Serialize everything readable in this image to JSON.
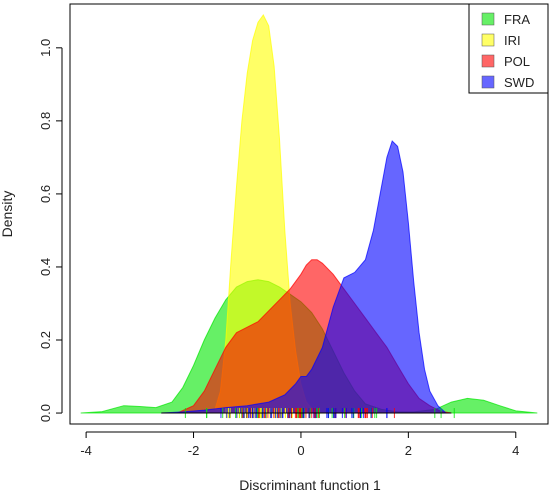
{
  "chart_data": {
    "type": "area",
    "title": "",
    "xlabel": "Discriminant function 1",
    "ylabel": "Density",
    "xlim": [
      -4.3,
      4.6
    ],
    "ylim": [
      -0.03,
      1.12
    ],
    "x_ticks": [
      "-4",
      "-2",
      "0",
      "2",
      "4"
    ],
    "y_ticks": [
      "0.0",
      "0.2",
      "0.4",
      "0.6",
      "0.8",
      "1.0"
    ],
    "legend_position": "top-right",
    "grid": false,
    "series": [
      {
        "name": "FRA",
        "color": "#00e600",
        "points": [
          [
            -4.1,
            0.0
          ],
          [
            -3.7,
            0.004
          ],
          [
            -3.3,
            0.02
          ],
          [
            -3.0,
            0.018
          ],
          [
            -2.7,
            0.015
          ],
          [
            -2.4,
            0.03
          ],
          [
            -2.2,
            0.07
          ],
          [
            -2.0,
            0.13
          ],
          [
            -1.8,
            0.2
          ],
          [
            -1.6,
            0.26
          ],
          [
            -1.4,
            0.31
          ],
          [
            -1.2,
            0.345
          ],
          [
            -1.0,
            0.36
          ],
          [
            -0.8,
            0.365
          ],
          [
            -0.6,
            0.36
          ],
          [
            -0.4,
            0.345
          ],
          [
            -0.2,
            0.325
          ],
          [
            0.0,
            0.305
          ],
          [
            0.2,
            0.275
          ],
          [
            0.4,
            0.23
          ],
          [
            0.6,
            0.17
          ],
          [
            0.8,
            0.11
          ],
          [
            1.0,
            0.06
          ],
          [
            1.2,
            0.025
          ],
          [
            1.5,
            0.01
          ],
          [
            1.8,
            0.003
          ],
          [
            2.1,
            0.003
          ],
          [
            2.5,
            0.01
          ],
          [
            2.8,
            0.03
          ],
          [
            3.1,
            0.04
          ],
          [
            3.4,
            0.035
          ],
          [
            3.7,
            0.02
          ],
          [
            4.0,
            0.006
          ],
          [
            4.4,
            0.0
          ]
        ]
      },
      {
        "name": "IRI",
        "color": "#ffff00",
        "points": [
          [
            -1.8,
            0.0
          ],
          [
            -1.6,
            0.01
          ],
          [
            -1.5,
            0.06
          ],
          [
            -1.4,
            0.2
          ],
          [
            -1.3,
            0.42
          ],
          [
            -1.2,
            0.62
          ],
          [
            -1.1,
            0.8
          ],
          [
            -1.0,
            0.93
          ],
          [
            -0.9,
            1.02
          ],
          [
            -0.8,
            1.07
          ],
          [
            -0.7,
            1.09
          ],
          [
            -0.6,
            1.06
          ],
          [
            -0.5,
            0.95
          ],
          [
            -0.4,
            0.75
          ],
          [
            -0.3,
            0.5
          ],
          [
            -0.2,
            0.3
          ],
          [
            -0.1,
            0.17
          ],
          [
            0.0,
            0.08
          ],
          [
            0.1,
            0.03
          ],
          [
            0.25,
            0.005
          ],
          [
            0.4,
            0.0
          ]
        ]
      },
      {
        "name": "POL",
        "color": "#ff0000",
        "points": [
          [
            -2.3,
            0.0
          ],
          [
            -2.0,
            0.02
          ],
          [
            -1.8,
            0.06
          ],
          [
            -1.6,
            0.12
          ],
          [
            -1.4,
            0.18
          ],
          [
            -1.2,
            0.22
          ],
          [
            -1.0,
            0.235
          ],
          [
            -0.8,
            0.25
          ],
          [
            -0.6,
            0.28
          ],
          [
            -0.4,
            0.31
          ],
          [
            -0.2,
            0.34
          ],
          [
            0.0,
            0.38
          ],
          [
            0.1,
            0.405
          ],
          [
            0.2,
            0.42
          ],
          [
            0.3,
            0.42
          ],
          [
            0.4,
            0.41
          ],
          [
            0.6,
            0.38
          ],
          [
            0.8,
            0.34
          ],
          [
            1.0,
            0.3
          ],
          [
            1.2,
            0.26
          ],
          [
            1.4,
            0.22
          ],
          [
            1.6,
            0.18
          ],
          [
            1.8,
            0.13
          ],
          [
            2.0,
            0.08
          ],
          [
            2.2,
            0.04
          ],
          [
            2.4,
            0.02
          ],
          [
            2.6,
            0.005
          ],
          [
            2.8,
            0.0
          ]
        ]
      },
      {
        "name": "SWD",
        "color": "#0000ff",
        "points": [
          [
            -2.6,
            0.0
          ],
          [
            -2.2,
            0.003
          ],
          [
            -1.8,
            0.008
          ],
          [
            -1.4,
            0.015
          ],
          [
            -1.0,
            0.02
          ],
          [
            -0.6,
            0.03
          ],
          [
            -0.3,
            0.05
          ],
          [
            -0.1,
            0.08
          ],
          [
            0.0,
            0.1
          ],
          [
            0.1,
            0.1
          ],
          [
            0.2,
            0.12
          ],
          [
            0.4,
            0.18
          ],
          [
            0.6,
            0.29
          ],
          [
            0.8,
            0.37
          ],
          [
            1.0,
            0.385
          ],
          [
            1.2,
            0.42
          ],
          [
            1.35,
            0.5
          ],
          [
            1.5,
            0.62
          ],
          [
            1.6,
            0.7
          ],
          [
            1.7,
            0.745
          ],
          [
            1.8,
            0.73
          ],
          [
            1.9,
            0.66
          ],
          [
            2.0,
            0.52
          ],
          [
            2.1,
            0.36
          ],
          [
            2.2,
            0.22
          ],
          [
            2.3,
            0.12
          ],
          [
            2.4,
            0.06
          ],
          [
            2.55,
            0.02
          ],
          [
            2.7,
            0.0
          ]
        ]
      }
    ]
  }
}
